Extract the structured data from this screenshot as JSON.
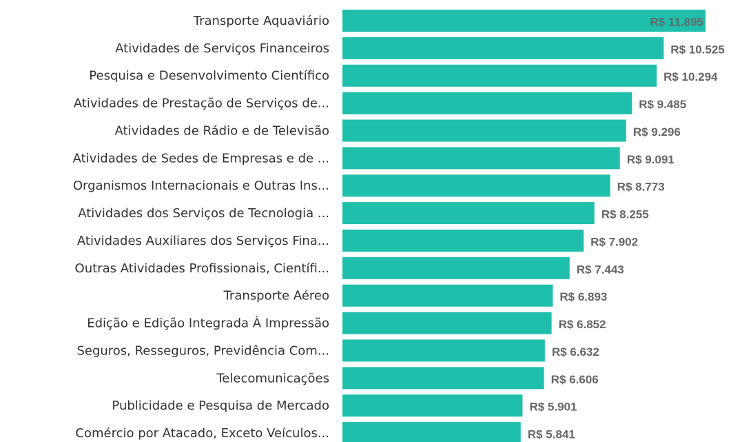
{
  "chart_data": {
    "type": "bar",
    "orientation": "horizontal",
    "color": "#20bfac",
    "categories": [
      "Transporte Aquaviário",
      "Atividades de Serviços Financeiros",
      "Pesquisa e Desenvolvimento Científico",
      "Atividades de Prestação de Serviços de...",
      "Atividades de Rádio e de Televisão",
      "Atividades de Sedes de Empresas e de ...",
      "Organismos Internacionais e Outras Ins...",
      "Atividades dos Serviços de Tecnologia ...",
      "Atividades Auxiliares dos Serviços Fina...",
      "Outras Atividades Profissionais, Científi...",
      "Transporte Aéreo",
      "Edição e Edição Integrada À Impressão",
      "Seguros, Resseguros, Previdência Com...",
      "Telecomunicações",
      "Publicidade e Pesquisa de Mercado",
      "Comércio por Atacado, Exceto Veículos..."
    ],
    "values": [
      11895,
      10525,
      10294,
      9485,
      9296,
      9091,
      8773,
      8255,
      7902,
      7443,
      6893,
      6852,
      6632,
      6606,
      5901,
      5841
    ],
    "value_labels": [
      "R$ 11.895",
      "R$ 10.525",
      "R$ 10.294",
      "R$ 9.485",
      "R$ 9.296",
      "R$ 9.091",
      "R$ 8.773",
      "R$ 8.255",
      "R$ 7.902",
      "R$ 7.443",
      "R$ 6.893",
      "R$ 6.852",
      "R$ 6.632",
      "R$ 6.606",
      "R$ 5.901",
      "R$ 5.841"
    ]
  }
}
